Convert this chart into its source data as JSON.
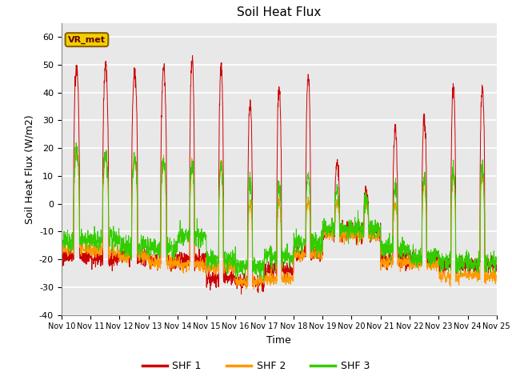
{
  "title": "Soil Heat Flux",
  "ylabel": "Soil Heat Flux (W/m2)",
  "xlabel": "Time",
  "ylim": [
    -40,
    65
  ],
  "yticks": [
    -40,
    -30,
    -20,
    -10,
    0,
    10,
    20,
    30,
    40,
    50,
    60
  ],
  "x_tick_labels": [
    "Nov 10",
    "Nov 11",
    "Nov 12",
    "Nov 13",
    "Nov 14",
    "Nov 15",
    "Nov 16",
    "Nov 17",
    "Nov 18",
    "Nov 19",
    "Nov 20",
    "Nov 21",
    "Nov 22",
    "Nov 23",
    "Nov 24",
    "Nov 25"
  ],
  "colors": {
    "SHF1": "#cc0000",
    "SHF2": "#ff9900",
    "SHF3": "#33cc00"
  },
  "legend_labels": [
    "SHF 1",
    "SHF 2",
    "SHF 3"
  ],
  "annotation_text": "VR_met",
  "plot_bg_color": "#e8e8e8",
  "fig_bg_color": "#ffffff",
  "grid_color": "#ffffff",
  "title_fontsize": 11,
  "axis_label_fontsize": 9,
  "tick_fontsize": 8
}
